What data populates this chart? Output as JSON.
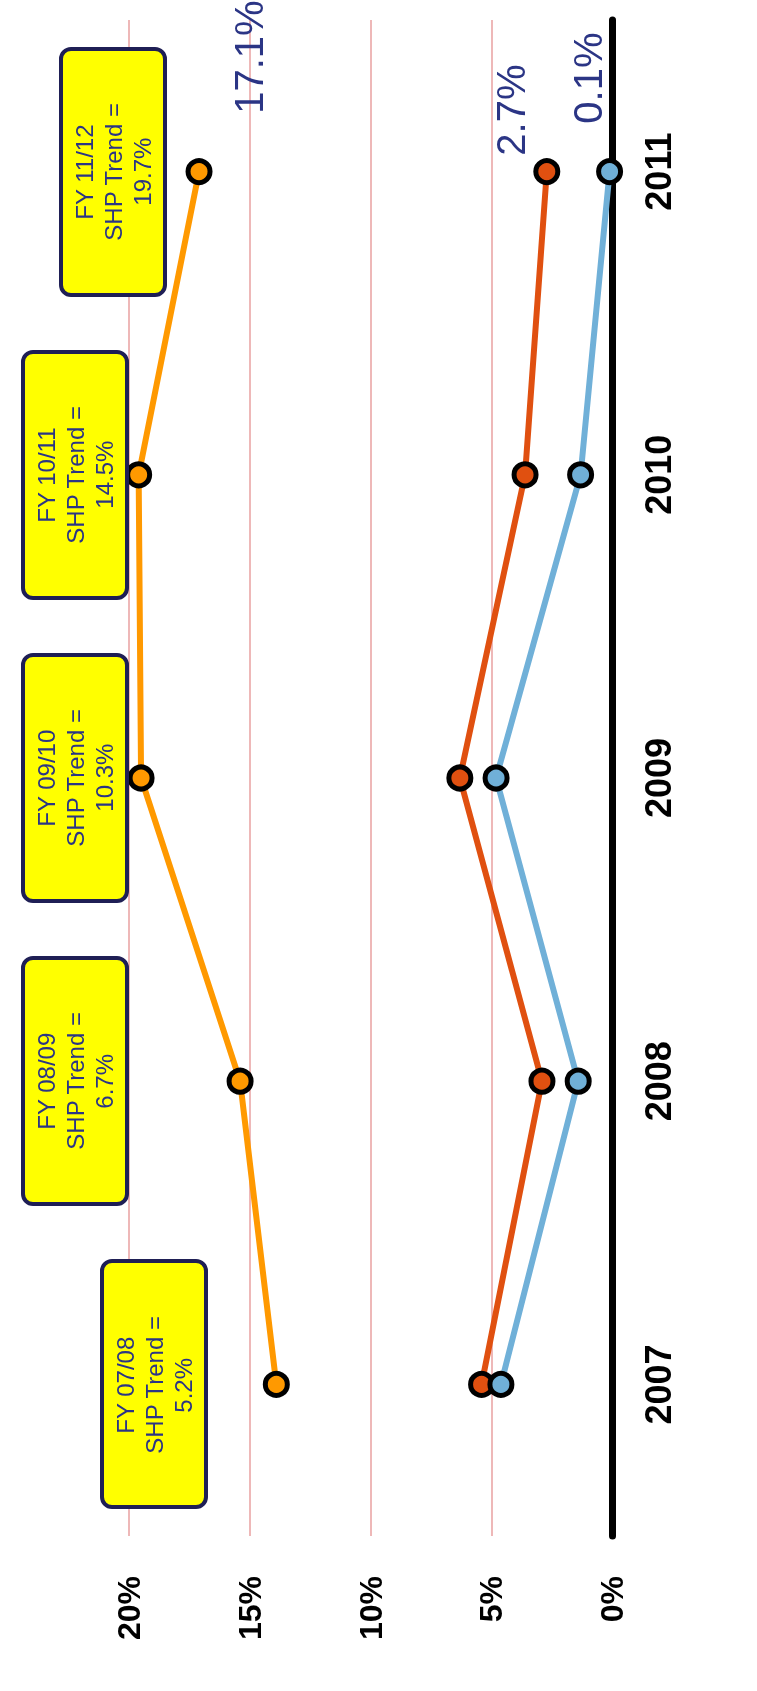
{
  "chart_data": {
    "type": "line",
    "orientation": "horizontal",
    "categories": [
      "2011",
      "2010",
      "2009",
      "2008",
      "2007"
    ],
    "series": [
      {
        "color": "#ff9900",
        "values": [
          17.1,
          19.6,
          19.5,
          15.4,
          13.9
        ],
        "value_labels": [
          "17.1%",
          null,
          null,
          null,
          null
        ]
      },
      {
        "color": "#e05010",
        "values": [
          2.7,
          3.6,
          6.3,
          2.9,
          5.4
        ],
        "value_labels": [
          "2.7%",
          null,
          null,
          null,
          null
        ]
      },
      {
        "color": "#70b0d8",
        "values": [
          0.1,
          1.3,
          4.8,
          1.4,
          4.6
        ],
        "value_labels": [
          "0.1%",
          null,
          null,
          null,
          null
        ]
      }
    ],
    "xlim": [
      20,
      0
    ],
    "xticks": [
      {
        "value": 0,
        "label": "0%"
      },
      {
        "value": 5,
        "label": "5%"
      },
      {
        "value": 10,
        "label": "10%"
      },
      {
        "value": 15,
        "label": "15%"
      },
      {
        "value": 20,
        "label": "20%"
      }
    ],
    "grid": "x",
    "marker": "circle",
    "line_style": "solid",
    "annotations": [
      "FY 11/12\nSHP Trend =\n19.7%",
      "FY 10/11\nSHP Trend =\n14.5%",
      "FY 09/10\nSHP Trend =\n10.3%",
      "FY 08/09\nSHP Trend =\n6.7%",
      "FY 07/08\nSHP Trend =\n5.2%"
    ]
  }
}
